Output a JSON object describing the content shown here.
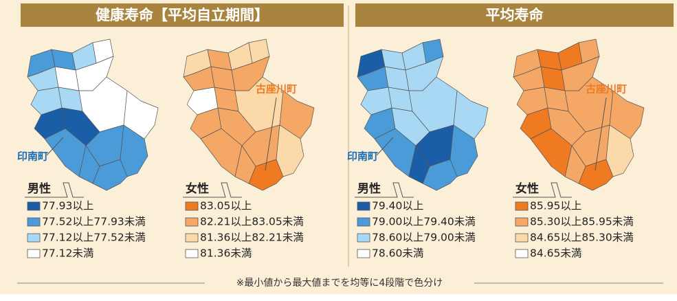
{
  "panels": [
    {
      "title": "健康寿命【平均自立期間】",
      "male": {
        "label": "男性",
        "town": "印南町",
        "legend": [
          {
            "color": "#1b5ea8",
            "text": "77.93以上"
          },
          {
            "color": "#4b9bd8",
            "text": "77.52以上77.93未満"
          },
          {
            "color": "#a9d8f4",
            "text": "77.12以上77.52未満"
          },
          {
            "color": "#ffffff",
            "text": "77.12未満"
          }
        ]
      },
      "female": {
        "label": "女性",
        "town": "古座川町",
        "legend": [
          {
            "color": "#f07a22",
            "text": "83.05以上"
          },
          {
            "color": "#f5a766",
            "text": "82.21以上83.05未満"
          },
          {
            "color": "#fbd9a8",
            "text": "81.36以上82.21未満"
          },
          {
            "color": "#ffffff",
            "text": "81.36未満"
          }
        ]
      }
    },
    {
      "title": "平均寿命",
      "male": {
        "label": "男性",
        "town": "印南町",
        "legend": [
          {
            "color": "#1b5ea8",
            "text": "79.40以上"
          },
          {
            "color": "#4b9bd8",
            "text": "79.00以上79.40未満"
          },
          {
            "color": "#a9d8f4",
            "text": "78.60以上79.00未満"
          },
          {
            "color": "#ffffff",
            "text": "78.60未満"
          }
        ]
      },
      "female": {
        "label": "女性",
        "town": "古座川町",
        "legend": [
          {
            "color": "#f07a22",
            "text": "85.95以上"
          },
          {
            "color": "#f5a766",
            "text": "85.30以上85.95未満"
          },
          {
            "color": "#fbd9a8",
            "text": "84.65以上85.30未満"
          },
          {
            "color": "#ffffff",
            "text": "84.65未満"
          }
        ]
      }
    }
  ],
  "footnote": "※最小値から最大値までを均等に4段階で色分け"
}
